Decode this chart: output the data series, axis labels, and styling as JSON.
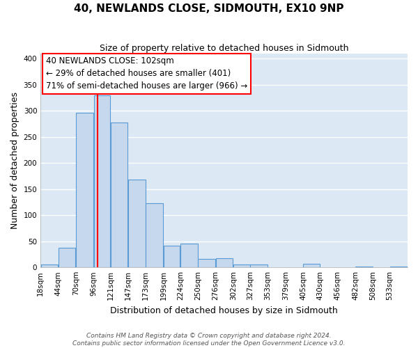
{
  "title": "40, NEWLANDS CLOSE, SIDMOUTH, EX10 9NP",
  "subtitle": "Size of property relative to detached houses in Sidmouth",
  "xlabel": "Distribution of detached houses by size in Sidmouth",
  "ylabel": "Number of detached properties",
  "bin_labels": [
    "18sqm",
    "44sqm",
    "70sqm",
    "96sqm",
    "121sqm",
    "147sqm",
    "173sqm",
    "199sqm",
    "224sqm",
    "250sqm",
    "276sqm",
    "302sqm",
    "327sqm",
    "353sqm",
    "379sqm",
    "405sqm",
    "430sqm",
    "456sqm",
    "482sqm",
    "508sqm",
    "533sqm"
  ],
  "bar_heights": [
    5,
    37,
    296,
    330,
    278,
    168,
    123,
    41,
    46,
    16,
    17,
    5,
    6,
    0,
    0,
    7,
    0,
    0,
    2,
    0,
    2
  ],
  "bar_color": "#c5d8ed",
  "bar_edgecolor": "#5b9bd5",
  "vline_x": 102,
  "vline_color": "red",
  "annotation_title": "40 NEWLANDS CLOSE: 102sqm",
  "annotation_line1": "← 29% of detached houses are smaller (401)",
  "annotation_line2": "71% of semi-detached houses are larger (966) →",
  "annotation_box_edgecolor": "red",
  "annotation_box_facecolor": "white",
  "bin_edges_values": [
    18,
    44,
    70,
    96,
    121,
    147,
    173,
    199,
    224,
    250,
    276,
    302,
    327,
    353,
    379,
    405,
    430,
    456,
    482,
    508,
    533,
    559
  ],
  "ylim": [
    0,
    410
  ],
  "yticks": [
    0,
    50,
    100,
    150,
    200,
    250,
    300,
    350,
    400
  ],
  "footer_line1": "Contains HM Land Registry data © Crown copyright and database right 2024.",
  "footer_line2": "Contains public sector information licensed under the Open Government Licence v3.0.",
  "plot_bg_color": "#dce9f5",
  "fig_bg_color": "#ffffff",
  "grid_color": "#ffffff",
  "title_fontsize": 11,
  "subtitle_fontsize": 9,
  "axis_label_fontsize": 9,
  "tick_fontsize": 7.5,
  "annotation_fontsize": 8.5,
  "footer_fontsize": 6.5
}
